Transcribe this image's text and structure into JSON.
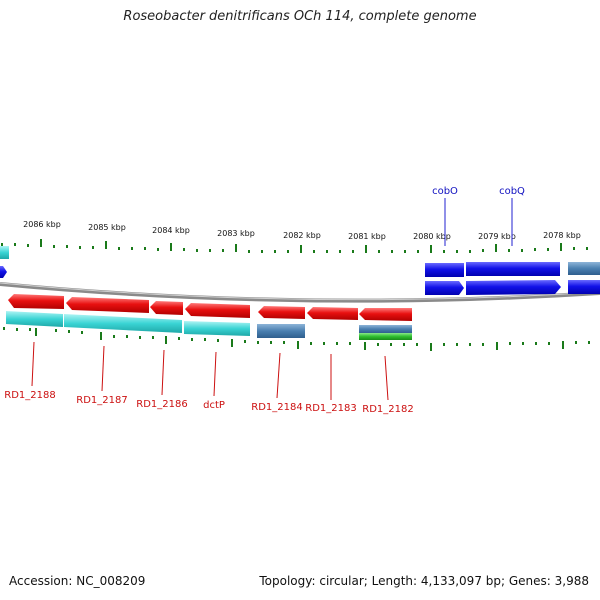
{
  "title": "Roseobacter denitrificans OCh 114, complete genome",
  "accession_text": "Accession: NC_008209",
  "summary_text": "Topology: circular; Length: 4,133,097 bp; Genes: 3,988",
  "colors": {
    "forward_gene": "#1010e6",
    "reverse_gene": "#e61414",
    "rna_teal": "#3ad4d4",
    "pseudo_steel": "#4a7fb0",
    "misc_green": "#2ebd2e",
    "tick": "#1a7a1a",
    "backbone": "#8a8a8a",
    "forward_label": "#1010c0",
    "reverse_label": "#cc1010"
  },
  "scale_labels": [
    "2086 kbp",
    "2085 kbp",
    "2084 kbp",
    "2083 kbp",
    "2082 kbp",
    "2081 kbp",
    "2080 kbp",
    "2079 kbp",
    "2078 kbp"
  ],
  "forward_gene_labels": [
    "cobO",
    "cobQ"
  ],
  "reverse_gene_labels": [
    "RD1_2188",
    "RD1_2187",
    "RD1_2186",
    "dctP",
    "RD1_2184",
    "RD1_2183",
    "RD1_2182"
  ]
}
